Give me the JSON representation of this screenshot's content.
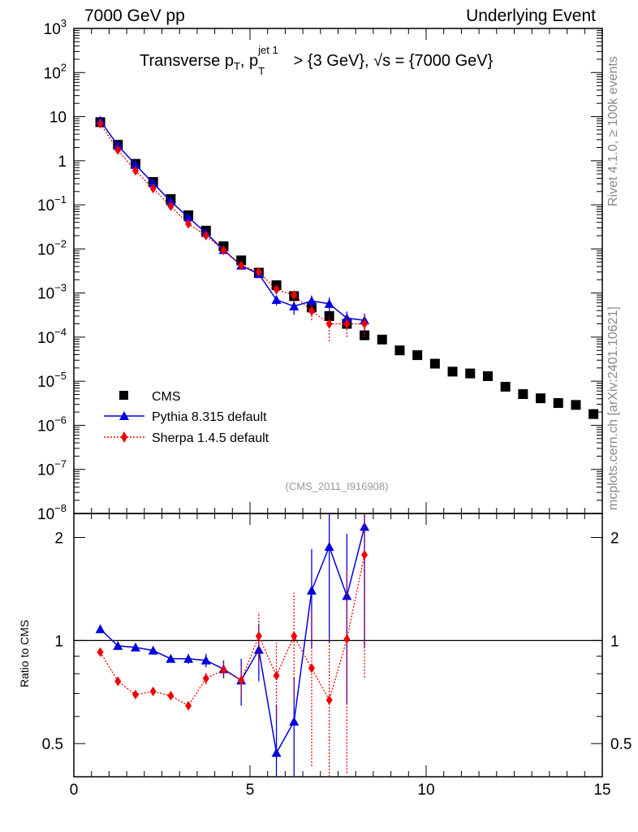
{
  "header": {
    "left": "7000 GeV pp",
    "right": "Underlying Event"
  },
  "title": {
    "main": "Transverse p",
    "sub_T": "T",
    "mid": ", p",
    "sup_jet": "jet 1",
    "sub_T2": "T",
    "rest": " > {3 GeV}, √s = {7000 GeV}"
  },
  "side_text": {
    "rivet": "Rivet 4.1.0, ≥ 100k events",
    "mcplots": "mcplots.cern.ch [arXiv:2401.10621]"
  },
  "analysis_tag": "(CMS_2011_I916908)",
  "legend": {
    "cms": "CMS",
    "pythia": "Pythia 8.315 default",
    "sherpa": "Sherpa 1.4.5 default"
  },
  "ratio_ylabel": "Ratio to CMS",
  "colors": {
    "cms": "#000000",
    "pythia": "#0000dd",
    "sherpa": "#ee0000"
  },
  "chart_data": [
    {
      "type": "scatter",
      "panel": "main",
      "yscale": "log",
      "xlim": [
        0,
        15
      ],
      "ylim": [
        1e-08,
        1000
      ],
      "ytick_labels": [
        "10^3",
        "10^2",
        "10",
        "1",
        "10^-1",
        "10^-2",
        "10^-3",
        "10^-4",
        "10^-5",
        "10^-6",
        "10^-7",
        "10^-8"
      ],
      "series": [
        {
          "name": "CMS",
          "x": [
            0.75,
            1.25,
            1.75,
            2.25,
            2.75,
            3.25,
            3.75,
            4.25,
            4.75,
            5.25,
            5.75,
            6.25,
            6.75,
            7.25,
            7.75,
            8.25,
            8.75,
            9.25,
            9.75,
            10.25,
            10.75,
            11.25,
            11.75,
            12.25,
            12.75,
            13.25,
            13.75,
            14.25,
            14.75
          ],
          "y": [
            7.5,
            2.3,
            0.85,
            0.33,
            0.135,
            0.058,
            0.026,
            0.0115,
            0.0055,
            0.0029,
            0.0015,
            0.00085,
            0.00047,
            0.0003,
            0.0002,
            0.00011,
            8.8e-05,
            5e-05,
            3.9e-05,
            2.5e-05,
            1.65e-05,
            1.5e-05,
            1.3e-05,
            7.5e-06,
            5.1e-06,
            4.1e-06,
            3.2e-06,
            2.9e-06,
            1.8e-06
          ]
        },
        {
          "name": "Pythia 8.315 default",
          "x": [
            0.75,
            1.25,
            1.75,
            2.25,
            2.75,
            3.25,
            3.75,
            4.25,
            4.75,
            5.25,
            5.75,
            6.25,
            6.75,
            7.25,
            7.75,
            8.25
          ],
          "y": [
            8.1,
            2.22,
            0.81,
            0.31,
            0.12,
            0.052,
            0.023,
            0.0095,
            0.0042,
            0.0027,
            0.0007,
            0.0005,
            0.00066,
            0.00057,
            0.00027,
            0.00024
          ],
          "err": [
            0.15,
            0.05,
            0.02,
            0.008,
            0.003,
            0.0015,
            0.0008,
            0.0004,
            0.0004,
            0.0004,
            0.00018,
            0.00018,
            0.00022,
            0.00022,
            0.00011,
            0.0001
          ]
        },
        {
          "name": "Sherpa 1.4.5 default",
          "x": [
            0.75,
            1.25,
            1.75,
            2.25,
            2.75,
            3.25,
            3.75,
            4.25,
            4.75,
            5.25,
            5.75,
            6.25,
            6.75,
            7.25,
            7.75,
            8.25
          ],
          "y": [
            6.9,
            1.75,
            0.59,
            0.235,
            0.093,
            0.037,
            0.0201,
            0.0093,
            0.0042,
            0.003,
            0.0012,
            0.0009,
            0.00039,
            0.0002,
            0.0002,
            0.0002
          ],
          "err": [
            0.12,
            0.04,
            0.015,
            0.006,
            0.0025,
            0.0012,
            0.0007,
            0.0004,
            0.0004,
            0.0004,
            0.00025,
            0.0003,
            0.00015,
            0.00012,
            0.0001,
            0.0001
          ]
        }
      ]
    },
    {
      "type": "scatter",
      "panel": "ratio",
      "yscale": "log",
      "xlim": [
        0,
        15
      ],
      "ylim": [
        0.4,
        2.35
      ],
      "xticks": [
        0,
        5,
        10,
        15
      ],
      "xtick_labels": [
        "0",
        "5",
        "10",
        "15"
      ],
      "yticks": [
        0.5,
        1,
        2
      ],
      "ytick_labels": [
        "0.5",
        "1",
        "2"
      ],
      "reference_line": 1,
      "series": [
        {
          "name": "Pythia 8.315 default",
          "x": [
            0.75,
            1.25,
            1.75,
            2.25,
            2.75,
            3.25,
            3.75,
            4.25,
            4.75,
            5.25,
            5.75,
            6.25,
            6.75,
            7.25,
            7.75,
            8.25
          ],
          "y": [
            1.08,
            0.965,
            0.955,
            0.935,
            0.885,
            0.885,
            0.875,
            0.825,
            0.765,
            0.94,
            0.47,
            0.58,
            1.4,
            1.88,
            1.35,
            2.15
          ],
          "err_low": [
            0.01,
            0.01,
            0.01,
            0.01,
            0.02,
            0.03,
            0.04,
            0.05,
            0.12,
            0.18,
            0.18,
            0.2,
            0.45,
            0.9,
            0.7,
            1.2
          ],
          "err_high": [
            0.01,
            0.01,
            0.01,
            0.01,
            0.02,
            0.03,
            0.04,
            0.05,
            0.12,
            0.18,
            0.18,
            0.2,
            0.45,
            0.9,
            0.7,
            1.2
          ]
        },
        {
          "name": "Sherpa 1.4.5 default",
          "x": [
            0.75,
            1.25,
            1.75,
            2.25,
            2.75,
            3.25,
            3.75,
            4.25,
            4.75,
            5.25,
            5.75,
            6.25,
            6.75,
            7.25,
            7.75,
            8.25
          ],
          "y": [
            0.925,
            0.76,
            0.695,
            0.71,
            0.69,
            0.645,
            0.775,
            0.82,
            0.765,
            1.03,
            0.79,
            1.03,
            0.83,
            0.67,
            1.01,
            1.78
          ],
          "err_low": [
            0.01,
            0.015,
            0.015,
            0.015,
            0.015,
            0.02,
            0.03,
            0.04,
            0.08,
            0.18,
            0.2,
            0.35,
            0.4,
            0.35,
            0.6,
            1.0
          ],
          "err_high": [
            0.01,
            0.015,
            0.015,
            0.015,
            0.015,
            0.02,
            0.03,
            0.04,
            0.08,
            0.18,
            0.2,
            0.35,
            0.4,
            0.35,
            0.6,
            1.0
          ]
        }
      ]
    }
  ]
}
